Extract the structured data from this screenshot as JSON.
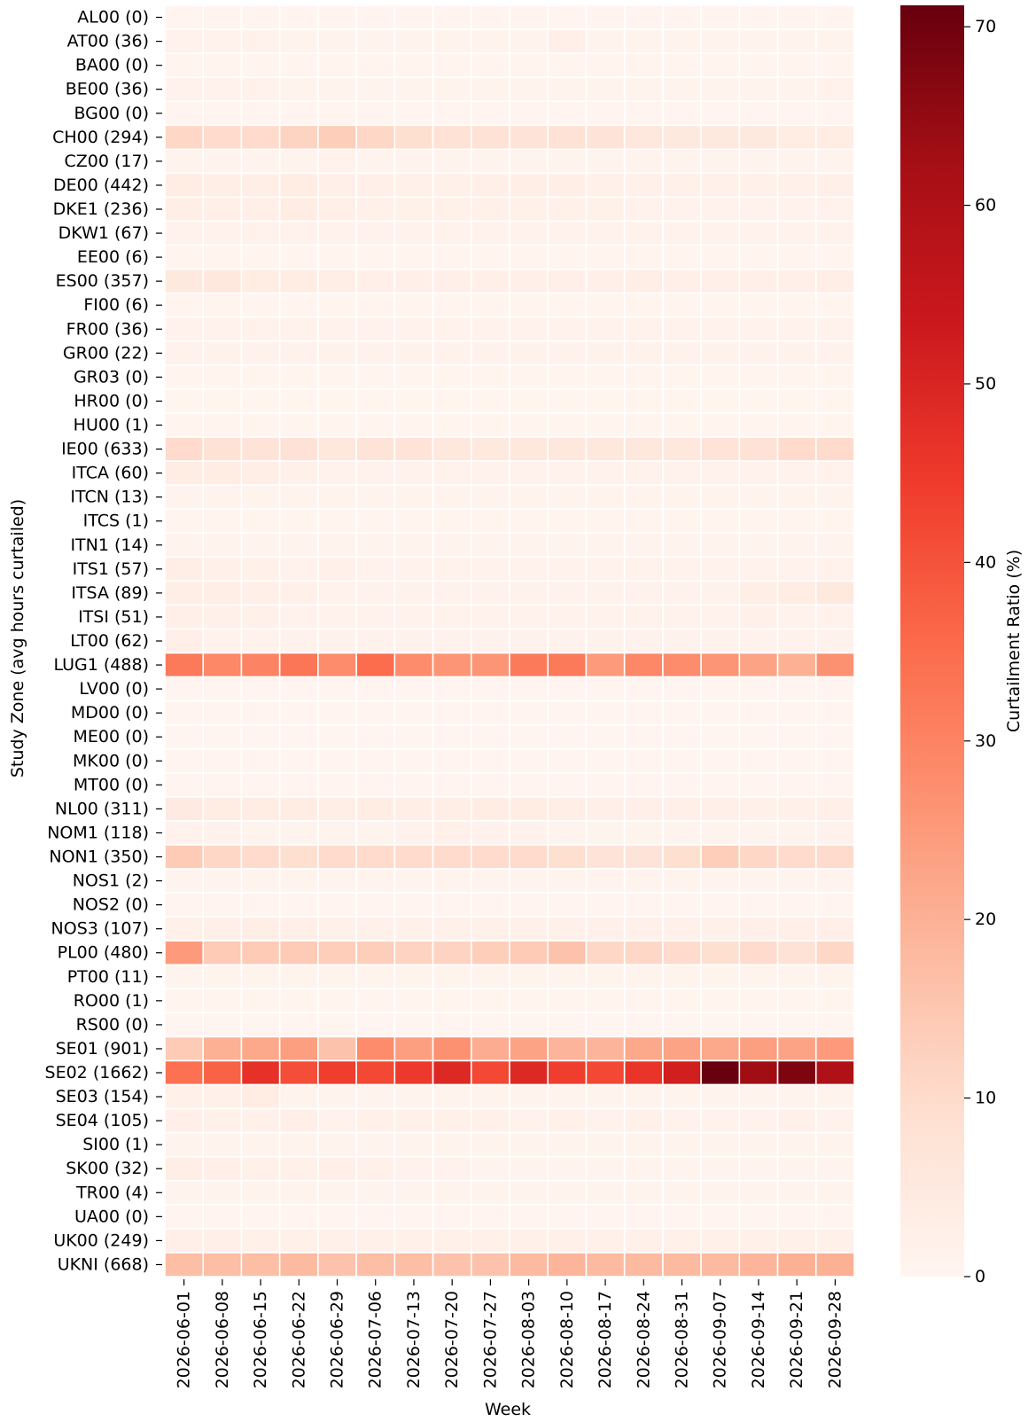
{
  "chart_data": {
    "type": "heatmap",
    "xlabel": "Week",
    "ylabel": "Study Zone (avg hours curtailed)",
    "colorbar_label": "Curtailment Ratio (%)",
    "colorbar_range": [
      0,
      71.2
    ],
    "colorbar_ticks": [
      "0",
      "10",
      "20",
      "30",
      "40",
      "50",
      "60",
      "70"
    ],
    "colorbar_tick_values": [
      0,
      10,
      20,
      30,
      40,
      50,
      60,
      70
    ],
    "colormap": "Reds",
    "colors": {
      "low": "#fff5f0",
      "high": "#67000d",
      "grid": "#ffffff"
    },
    "weeks": [
      "2026-06-01",
      "2026-06-08",
      "2026-06-15",
      "2026-06-22",
      "2026-06-29",
      "2026-07-06",
      "2026-07-13",
      "2026-07-20",
      "2026-07-27",
      "2026-08-03",
      "2026-08-10",
      "2026-08-17",
      "2026-08-24",
      "2026-08-31",
      "2026-09-07",
      "2026-09-14",
      "2026-09-21",
      "2026-09-28"
    ],
    "zones": [
      "AL00 (0)",
      "AT00 (36)",
      "BA00 (0)",
      "BE00 (36)",
      "BG00 (0)",
      "CH00 (294)",
      "CZ00 (17)",
      "DE00 (442)",
      "DKE1 (236)",
      "DKW1 (67)",
      "EE00 (6)",
      "ES00 (357)",
      "FI00 (6)",
      "FR00 (36)",
      "GR00 (22)",
      "GR03 (0)",
      "HR00 (0)",
      "HU00 (1)",
      "IE00 (633)",
      "ITCA (60)",
      "ITCN (13)",
      "ITCS (1)",
      "ITN1 (14)",
      "ITS1 (57)",
      "ITSA (89)",
      "ITSI (51)",
      "LT00 (62)",
      "LUG1 (488)",
      "LV00 (0)",
      "MD00 (0)",
      "ME00 (0)",
      "MK00 (0)",
      "MT00 (0)",
      "NL00 (311)",
      "NOM1 (118)",
      "NON1 (350)",
      "NOS1 (2)",
      "NOS2 (0)",
      "NOS3 (107)",
      "PL00 (480)",
      "PT00 (11)",
      "RO00 (1)",
      "RS00 (0)",
      "SE01 (901)",
      "SE02 (1662)",
      "SE03 (154)",
      "SE04 (105)",
      "SI00 (1)",
      "SK00 (32)",
      "TR00 (4)",
      "UA00 (0)",
      "UK00 (249)",
      "UKNI (668)"
    ],
    "values": [
      [
        0.3,
        0.3,
        0.3,
        0.3,
        0.3,
        0.3,
        0.3,
        0.3,
        0.3,
        0.3,
        0.3,
        0.3,
        0.3,
        0.3,
        0.3,
        0.3,
        0.3,
        0.3
      ],
      [
        1.5,
        1.2,
        1.2,
        1.0,
        1.0,
        1.0,
        1.0,
        1.0,
        1.0,
        1.0,
        2.5,
        1.0,
        1.0,
        0.8,
        0.8,
        0.8,
        0.8,
        0.8
      ],
      [
        0.5,
        0.5,
        0.5,
        0.5,
        0.5,
        0.5,
        0.5,
        0.5,
        0.5,
        0.5,
        0.5,
        0.5,
        0.5,
        0.5,
        0.5,
        0.5,
        0.5,
        0.5
      ],
      [
        1.5,
        1.2,
        1.2,
        1.0,
        1.0,
        1.0,
        1.0,
        1.0,
        1.0,
        1.0,
        1.0,
        1.0,
        1.0,
        1.0,
        1.0,
        1.0,
        1.0,
        1.5
      ],
      [
        0.3,
        0.3,
        0.3,
        0.3,
        0.3,
        0.3,
        0.3,
        0.3,
        0.3,
        0.3,
        0.3,
        0.3,
        0.3,
        0.3,
        0.3,
        0.3,
        0.3,
        0.3
      ],
      [
        11,
        10,
        10,
        12,
        13,
        11,
        9,
        8,
        8,
        7,
        8,
        7,
        6,
        5,
        5,
        5,
        4,
        4
      ],
      [
        0.8,
        0.8,
        0.8,
        0.8,
        1.2,
        0.8,
        0.8,
        0.8,
        0.8,
        0.8,
        0.8,
        0.8,
        0.8,
        0.8,
        0.8,
        0.8,
        0.8,
        0.8
      ],
      [
        3.5,
        3,
        3,
        4,
        2.5,
        2.5,
        2,
        2,
        2.5,
        3,
        3,
        2,
        2,
        2,
        2,
        2,
        2,
        2.5
      ],
      [
        3,
        2.5,
        2.5,
        3.5,
        2.5,
        2,
        2,
        2,
        2,
        2,
        2,
        2,
        1.5,
        1.5,
        1.5,
        1.5,
        1.5,
        1.5
      ],
      [
        1.5,
        1.2,
        1.2,
        1.5,
        1.2,
        1.2,
        1.2,
        1.2,
        1.2,
        1.2,
        1.2,
        1.2,
        1.2,
        1.2,
        1.2,
        1.2,
        1.2,
        1.2
      ],
      [
        0.5,
        0.5,
        0.5,
        0.5,
        0.5,
        0.5,
        0.5,
        0.5,
        0.5,
        0.5,
        0.5,
        0.5,
        0.5,
        0.5,
        0.5,
        0.5,
        0.5,
        0.5
      ],
      [
        5,
        5.5,
        4,
        3.5,
        3,
        2.5,
        2.5,
        2.5,
        2.5,
        2.5,
        2.5,
        2.5,
        3,
        2.5,
        2.5,
        2.5,
        2.5,
        3
      ],
      [
        0.5,
        0.5,
        0.5,
        0.5,
        0.5,
        0.5,
        0.5,
        0.5,
        0.5,
        0.5,
        0.5,
        0.5,
        0.5,
        0.5,
        0.5,
        0.5,
        0.5,
        0.5
      ],
      [
        1.5,
        1.2,
        1.2,
        1.2,
        1.2,
        1.2,
        1.2,
        1.2,
        1.2,
        1.2,
        1.2,
        1.2,
        1.2,
        1.2,
        1.2,
        1.2,
        1.2,
        1.2
      ],
      [
        1.5,
        1.2,
        1.2,
        1.2,
        1.2,
        1.2,
        1.2,
        1.2,
        1.2,
        1.2,
        1.2,
        1.2,
        1.2,
        1.2,
        1.2,
        1.2,
        1.2,
        1.2
      ],
      [
        0.5,
        0.5,
        0.5,
        0.5,
        0.5,
        0.5,
        0.5,
        0.5,
        0.5,
        0.5,
        0.5,
        0.5,
        0.5,
        0.5,
        0.5,
        0.5,
        0.5,
        0.5
      ],
      [
        0.5,
        0.5,
        0.5,
        0.5,
        0.5,
        0.5,
        0.5,
        0.5,
        0.5,
        0.5,
        0.5,
        0.5,
        0.5,
        0.5,
        0.5,
        0.5,
        0.5,
        0.5
      ],
      [
        0.5,
        0.5,
        0.5,
        0.5,
        0.5,
        0.5,
        0.5,
        0.5,
        0.5,
        0.5,
        0.5,
        0.5,
        0.5,
        0.5,
        0.5,
        0.5,
        0.5,
        0.5
      ],
      [
        10,
        8,
        7,
        8,
        6,
        7,
        7,
        6,
        5,
        6,
        6,
        6,
        6,
        6,
        7,
        8,
        10,
        10
      ],
      [
        4,
        4,
        3,
        2,
        1.5,
        1.5,
        1.5,
        1.5,
        1.5,
        1.5,
        1.5,
        1.5,
        1.5,
        1.5,
        1.5,
        1.5,
        1.5,
        1.5
      ],
      [
        1.0,
        0.8,
        0.8,
        0.8,
        0.8,
        0.8,
        0.8,
        0.8,
        0.8,
        0.8,
        0.8,
        0.8,
        0.8,
        0.8,
        0.8,
        0.8,
        0.8,
        0.8
      ],
      [
        0.5,
        0.5,
        0.5,
        0.5,
        0.5,
        0.5,
        0.5,
        0.5,
        0.5,
        0.5,
        0.5,
        0.5,
        0.5,
        0.5,
        0.5,
        0.5,
        0.5,
        0.5
      ],
      [
        1.0,
        0.8,
        0.8,
        0.8,
        0.8,
        0.8,
        0.8,
        0.8,
        0.8,
        0.8,
        0.8,
        0.8,
        0.8,
        0.8,
        0.8,
        0.8,
        0.8,
        0.8
      ],
      [
        3,
        2,
        2,
        1.5,
        2,
        1.5,
        1.5,
        1.5,
        1.5,
        1.5,
        1.5,
        1.5,
        1.5,
        1.5,
        1.5,
        1.5,
        1.5,
        1.5
      ],
      [
        3,
        3,
        2.5,
        2,
        1.5,
        1.5,
        1.5,
        1.5,
        1.5,
        1.5,
        1.5,
        1.5,
        1.5,
        1.5,
        1.5,
        3,
        4,
        5
      ],
      [
        2.5,
        2,
        2,
        1.5,
        1.5,
        1.5,
        1.5,
        1.5,
        1.5,
        1.5,
        1.5,
        1.5,
        1.5,
        1.5,
        1.5,
        2,
        1.5,
        1.5
      ],
      [
        2.5,
        1.5,
        1.5,
        1.5,
        1.5,
        1.5,
        1.5,
        1.5,
        1.5,
        1.5,
        1.5,
        1.5,
        1.5,
        1.5,
        1.5,
        1.5,
        1.5,
        1.5
      ],
      [
        32,
        29,
        30,
        33,
        28,
        35,
        28,
        26,
        26,
        32,
        32,
        25,
        29,
        28,
        26,
        23,
        20,
        27
      ],
      [
        0.3,
        0.3,
        0.3,
        0.3,
        0.3,
        0.3,
        0.3,
        0.3,
        0.3,
        0.3,
        0.3,
        0.3,
        0.3,
        0.3,
        0.3,
        0.3,
        0.3,
        0.3
      ],
      [
        0.3,
        0.3,
        0.3,
        0.3,
        0.3,
        0.3,
        0.3,
        0.3,
        0.3,
        0.3,
        0.3,
        0.3,
        0.3,
        0.3,
        0.3,
        0.3,
        0.3,
        0.3
      ],
      [
        0.3,
        0.3,
        0.3,
        0.3,
        0.3,
        0.3,
        0.3,
        0.3,
        0.3,
        0.3,
        0.3,
        0.3,
        0.3,
        0.3,
        0.3,
        0.3,
        0.3,
        0.3
      ],
      [
        0.3,
        0.3,
        0.3,
        0.3,
        0.3,
        0.3,
        0.3,
        0.3,
        0.3,
        0.3,
        0.3,
        0.3,
        0.3,
        0.3,
        0.3,
        0.3,
        0.3,
        0.3
      ],
      [
        0.3,
        0.3,
        0.3,
        0.3,
        0.3,
        0.3,
        0.3,
        0.3,
        0.3,
        0.3,
        0.3,
        0.3,
        0.3,
        0.3,
        0.3,
        0.3,
        0.3,
        0.3
      ],
      [
        4.5,
        4,
        4,
        4,
        3,
        3.5,
        3,
        3,
        3.5,
        3.5,
        3,
        2.5,
        2.5,
        2.5,
        2.5,
        2,
        2,
        2.5
      ],
      [
        1.5,
        1.5,
        1,
        1,
        1,
        1,
        1.5,
        2,
        1.5,
        1.5,
        1,
        1,
        1,
        1,
        1,
        1,
        1,
        1.5
      ],
      [
        14,
        11,
        10,
        9,
        10,
        10,
        10,
        10,
        10,
        10,
        9,
        7,
        7,
        9,
        13,
        11,
        10,
        10
      ],
      [
        0.8,
        0.8,
        0.8,
        0.8,
        0.8,
        0.8,
        0.8,
        0.8,
        0.8,
        0.8,
        0.8,
        0.8,
        0.8,
        0.8,
        0.8,
        0.8,
        0.8,
        0.8
      ],
      [
        0.3,
        0.3,
        0.3,
        0.3,
        0.3,
        0.3,
        0.3,
        0.3,
        0.3,
        0.3,
        0.3,
        0.3,
        0.3,
        0.3,
        0.3,
        0.3,
        0.3,
        0.3
      ],
      [
        2,
        2.5,
        3,
        2.5,
        2,
        2,
        2,
        2,
        2,
        2,
        2,
        2,
        2,
        2,
        2,
        2.5,
        2.5,
        2.5
      ],
      [
        25,
        14,
        14,
        14,
        13,
        13,
        12,
        12,
        13,
        14,
        16,
        11,
        11,
        10,
        9,
        10,
        8,
        11
      ],
      [
        1.0,
        0.8,
        0.8,
        0.8,
        0.8,
        0.8,
        0.8,
        0.8,
        0.8,
        0.8,
        0.8,
        0.8,
        0.8,
        0.8,
        0.8,
        0.8,
        0.8,
        0.8
      ],
      [
        0.5,
        0.5,
        0.5,
        0.5,
        0.5,
        0.5,
        0.5,
        0.5,
        0.5,
        0.5,
        0.5,
        0.5,
        0.5,
        0.5,
        0.5,
        0.5,
        0.5,
        0.5
      ],
      [
        0.3,
        0.3,
        0.3,
        0.3,
        0.3,
        0.3,
        0.3,
        0.3,
        0.3,
        0.3,
        0.3,
        0.3,
        0.3,
        0.3,
        0.3,
        0.3,
        0.3,
        0.3
      ],
      [
        14,
        20,
        22,
        24,
        16,
        28,
        24,
        27,
        21,
        23,
        19,
        19,
        22,
        23,
        22,
        24,
        23,
        25
      ],
      [
        34,
        37,
        47,
        41,
        44,
        42,
        45,
        49,
        42,
        49,
        44,
        42,
        46,
        52,
        71,
        63,
        68,
        60
      ],
      [
        2,
        2,
        4,
        1,
        1,
        1,
        1,
        1,
        1,
        1,
        1,
        1,
        1,
        1,
        1,
        1,
        1,
        1
      ],
      [
        2.5,
        2,
        2,
        2.5,
        1.5,
        2,
        2,
        2,
        2,
        1.5,
        2,
        1.5,
        2,
        1.5,
        1.5,
        1.5,
        2,
        1.5
      ],
      [
        1.0,
        0.8,
        0.8,
        0.8,
        0.8,
        0.8,
        0.8,
        0.8,
        0.8,
        0.8,
        0.8,
        0.8,
        0.8,
        0.8,
        0.8,
        0.8,
        0.8,
        0.8
      ],
      [
        3,
        2.5,
        2,
        2,
        2.5,
        2,
        1.5,
        1.5,
        1,
        1,
        1,
        1,
        1,
        1,
        1,
        1,
        1,
        1
      ],
      [
        0.8,
        0.8,
        0.8,
        0.8,
        0.8,
        0.8,
        0.8,
        0.8,
        0.8,
        0.8,
        0.8,
        0.8,
        0.8,
        0.8,
        0.8,
        0.8,
        0.8,
        0.8
      ],
      [
        0.3,
        0.3,
        0.3,
        0.3,
        0.3,
        0.3,
        0.3,
        0.3,
        0.3,
        0.3,
        0.3,
        0.3,
        0.3,
        0.3,
        0.3,
        0.3,
        0.3,
        0.3
      ],
      [
        2.5,
        2.5,
        2,
        2,
        2,
        2,
        2,
        2,
        2,
        2,
        2,
        2,
        2,
        2,
        2,
        2,
        2,
        2
      ],
      [
        17,
        17,
        17,
        18,
        16,
        17,
        17,
        16,
        16,
        18,
        19,
        18,
        18,
        18,
        18,
        19,
        20,
        20
      ]
    ]
  }
}
